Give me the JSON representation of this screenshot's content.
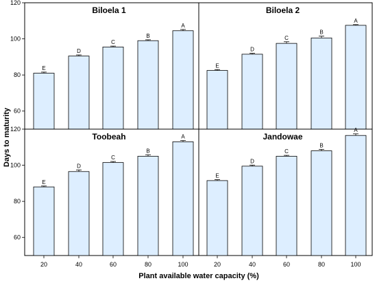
{
  "chart_data": {
    "type": "bar",
    "xlabel": "Plant available water capacity (%)",
    "ylabel": "Days to maturity",
    "categories": [
      "20",
      "40",
      "60",
      "80",
      "100"
    ],
    "ylim_top_row": [
      50,
      120
    ],
    "ylim_bottom_row": [
      50,
      120
    ],
    "yticks": [
      60,
      80,
      100,
      120
    ],
    "bar_color": "#ddeeff",
    "panels": [
      {
        "title": "Biloela 1",
        "values": [
          81,
          90.5,
          95.5,
          99,
          104.5
        ],
        "errors": [
          0.6,
          0.6,
          0.5,
          0.5,
          0.7
        ],
        "letters": [
          "E",
          "D",
          "C",
          "B",
          "A"
        ]
      },
      {
        "title": "Biloela 2",
        "values": [
          82.5,
          91.5,
          97.5,
          100.5,
          107.5
        ],
        "errors": [
          0.5,
          0.5,
          0.9,
          1.0,
          0.4
        ],
        "letters": [
          "E",
          "D",
          "C",
          "B",
          "A"
        ]
      },
      {
        "title": "Toobeah",
        "values": [
          88,
          96.5,
          101.5,
          105,
          113
        ],
        "errors": [
          0.5,
          0.9,
          0.6,
          0.8,
          0.7
        ],
        "letters": [
          "E",
          "D",
          "C",
          "B",
          "A"
        ]
      },
      {
        "title": "Jandowae",
        "values": [
          91.5,
          99.5,
          105,
          108,
          116.5
        ],
        "errors": [
          0.5,
          0.6,
          0.5,
          0.8,
          0.9
        ],
        "letters": [
          "E",
          "D",
          "C",
          "B",
          "A"
        ]
      }
    ]
  }
}
